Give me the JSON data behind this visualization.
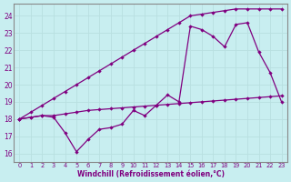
{
  "xlabel": "Windchill (Refroidissement éolien,°C)",
  "background_color": "#c8eef0",
  "grid_color": "#b8dfe0",
  "line_color": "#800080",
  "x_hours": [
    0,
    1,
    2,
    3,
    4,
    5,
    6,
    7,
    8,
    9,
    10,
    11,
    12,
    13,
    14,
    15,
    16,
    17,
    18,
    19,
    20,
    21,
    22,
    23
  ],
  "line_straight": [
    18.0,
    18.4,
    18.8,
    19.2,
    19.6,
    20.0,
    20.4,
    20.8,
    21.2,
    21.6,
    22.0,
    22.4,
    22.8,
    23.2,
    23.6,
    24.0,
    24.1,
    24.2,
    24.3,
    24.4,
    24.4,
    24.4,
    24.4,
    24.4
  ],
  "line_peaky": [
    18.0,
    18.1,
    18.2,
    18.1,
    17.2,
    16.1,
    16.8,
    17.4,
    17.5,
    17.7,
    18.5,
    18.2,
    18.8,
    19.4,
    19.0,
    23.4,
    23.2,
    22.8,
    22.2,
    23.5,
    23.6,
    21.9,
    20.7,
    19.0
  ],
  "line_flat": [
    18.0,
    18.1,
    18.2,
    18.2,
    18.3,
    18.4,
    18.5,
    18.55,
    18.6,
    18.65,
    18.7,
    18.75,
    18.8,
    18.85,
    18.9,
    18.95,
    19.0,
    19.05,
    19.1,
    19.15,
    19.2,
    19.25,
    19.3,
    19.35
  ],
  "ylim": [
    15.5,
    24.7
  ],
  "yticks": [
    16,
    17,
    18,
    19,
    20,
    21,
    22,
    23,
    24
  ],
  "xlim": [
    -0.5,
    23.5
  ]
}
